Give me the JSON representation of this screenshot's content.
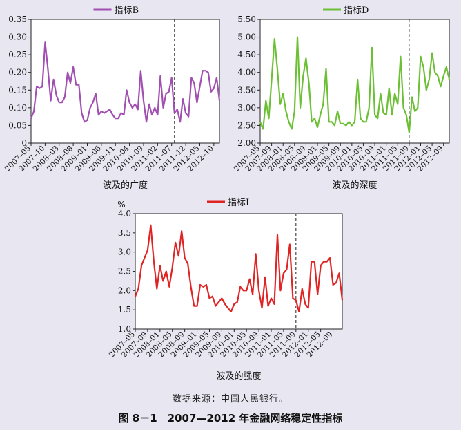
{
  "source_note": "数据来源：中国人民银行。",
  "figure_title": "图 8－1　2007—2012 年金融网络稳定性指标",
  "chart_data": [
    {
      "type": "line",
      "color": "#a14fb0",
      "legend": "指标B",
      "xlabel": "波及的广度",
      "ylabel": "",
      "ylim": [
        0,
        0.35
      ],
      "yticks": [
        "0",
        "0.05",
        "0.10",
        "0.15",
        "0.20",
        "0.25",
        "0.30",
        "0.35"
      ],
      "x_start": "2007-05",
      "xticks": [
        "2007–05",
        "2007–10",
        "2008–03",
        "2008–08",
        "2009–01",
        "2009–06",
        "2009–11",
        "2010–04",
        "2010–09",
        "2011–02",
        "2011–07",
        "2011–12",
        "2012–05",
        "2012–10"
      ],
      "xtick_step": 5,
      "divider_index": 51,
      "values": [
        0.07,
        0.09,
        0.16,
        0.155,
        0.16,
        0.285,
        0.21,
        0.12,
        0.18,
        0.135,
        0.115,
        0.115,
        0.13,
        0.2,
        0.17,
        0.215,
        0.165,
        0.165,
        0.085,
        0.06,
        0.065,
        0.1,
        0.115,
        0.14,
        0.08,
        0.09,
        0.085,
        0.09,
        0.095,
        0.08,
        0.07,
        0.07,
        0.085,
        0.08,
        0.15,
        0.115,
        0.1,
        0.11,
        0.095,
        0.205,
        0.12,
        0.06,
        0.11,
        0.08,
        0.1,
        0.08,
        0.19,
        0.1,
        0.14,
        0.145,
        0.185,
        0.085,
        0.095,
        0.06,
        0.125,
        0.085,
        0.075,
        0.185,
        0.17,
        0.115,
        0.16,
        0.205,
        0.205,
        0.2,
        0.145,
        0.155,
        0.185,
        0.12
      ]
    },
    {
      "type": "line",
      "color": "#6cc035",
      "legend": "指标D",
      "xlabel": "波及的深度",
      "ylabel": "",
      "ylim": [
        2.0,
        5.5
      ],
      "yticks": [
        "2.00",
        "2.50",
        "3.00",
        "3.50",
        "4.00",
        "4.50",
        "5.00",
        "5.50"
      ],
      "x_start": "2007-05",
      "xticks": [
        "2007–05",
        "2007–09",
        "2008–01",
        "2008–05",
        "2008–09",
        "2009–01",
        "2009–05",
        "2009–09",
        "2010–01",
        "2010–05",
        "2010–09",
        "2011–01",
        "2011–05",
        "2011–09",
        "2012–01",
        "2012–05",
        "2012–09"
      ],
      "xtick_step": 4,
      "divider_index": 52,
      "values": [
        2.6,
        2.4,
        3.2,
        2.7,
        3.8,
        4.95,
        4.1,
        3.1,
        3.4,
        2.9,
        2.6,
        2.4,
        2.9,
        5.0,
        3.0,
        3.9,
        4.4,
        3.7,
        2.6,
        2.7,
        2.45,
        2.8,
        3.1,
        4.1,
        2.6,
        2.6,
        2.5,
        2.9,
        2.55,
        2.55,
        2.5,
        2.6,
        2.5,
        2.6,
        3.8,
        2.7,
        2.6,
        2.6,
        3.0,
        4.7,
        2.8,
        2.7,
        3.4,
        2.85,
        2.8,
        3.55,
        2.8,
        3.4,
        3.1,
        4.45,
        3.0,
        2.8,
        2.3,
        3.3,
        2.9,
        3.0,
        4.45,
        4.15,
        3.5,
        3.8,
        4.55,
        4.0,
        3.9,
        3.6,
        3.9,
        4.15,
        3.8
      ]
    },
    {
      "type": "line",
      "color": "#e02424",
      "legend": "指标I",
      "xlabel": "波及的强度",
      "ylabel": "%",
      "ylim": [
        1.0,
        4.0
      ],
      "yticks": [
        "1.0",
        "1.5",
        "2.0",
        "2.5",
        "3.0",
        "3.5",
        "4.0"
      ],
      "x_start": "2007-05",
      "xticks": [
        "2007–05",
        "2007–09",
        "2008–01",
        "2008–05",
        "2008–09",
        "2009–01",
        "2009–05",
        "2009–09",
        "2010–01",
        "2010–05",
        "2010–09",
        "2011–01",
        "2011–05",
        "2011–09",
        "2012–01",
        "2012–05",
        "2012–09"
      ],
      "xtick_step": 4,
      "divider_index": 52,
      "values": [
        1.85,
        2.05,
        2.65,
        2.85,
        3.05,
        3.7,
        2.75,
        2.05,
        2.65,
        2.25,
        2.5,
        2.1,
        2.6,
        3.25,
        2.9,
        3.55,
        2.85,
        2.7,
        2.1,
        1.6,
        1.6,
        2.15,
        2.1,
        2.15,
        1.8,
        1.85,
        1.6,
        1.7,
        1.8,
        1.65,
        1.55,
        1.45,
        1.65,
        1.7,
        2.1,
        2.0,
        2.0,
        2.3,
        1.9,
        2.95,
        2.0,
        1.55,
        2.35,
        1.6,
        1.8,
        1.65,
        3.45,
        2.0,
        2.45,
        2.55,
        3.2,
        1.8,
        1.75,
        1.45,
        2.05,
        1.65,
        1.55,
        2.75,
        2.75,
        1.9,
        2.65,
        2.75,
        2.75,
        2.85,
        2.15,
        2.2,
        2.45,
        1.75
      ]
    }
  ]
}
